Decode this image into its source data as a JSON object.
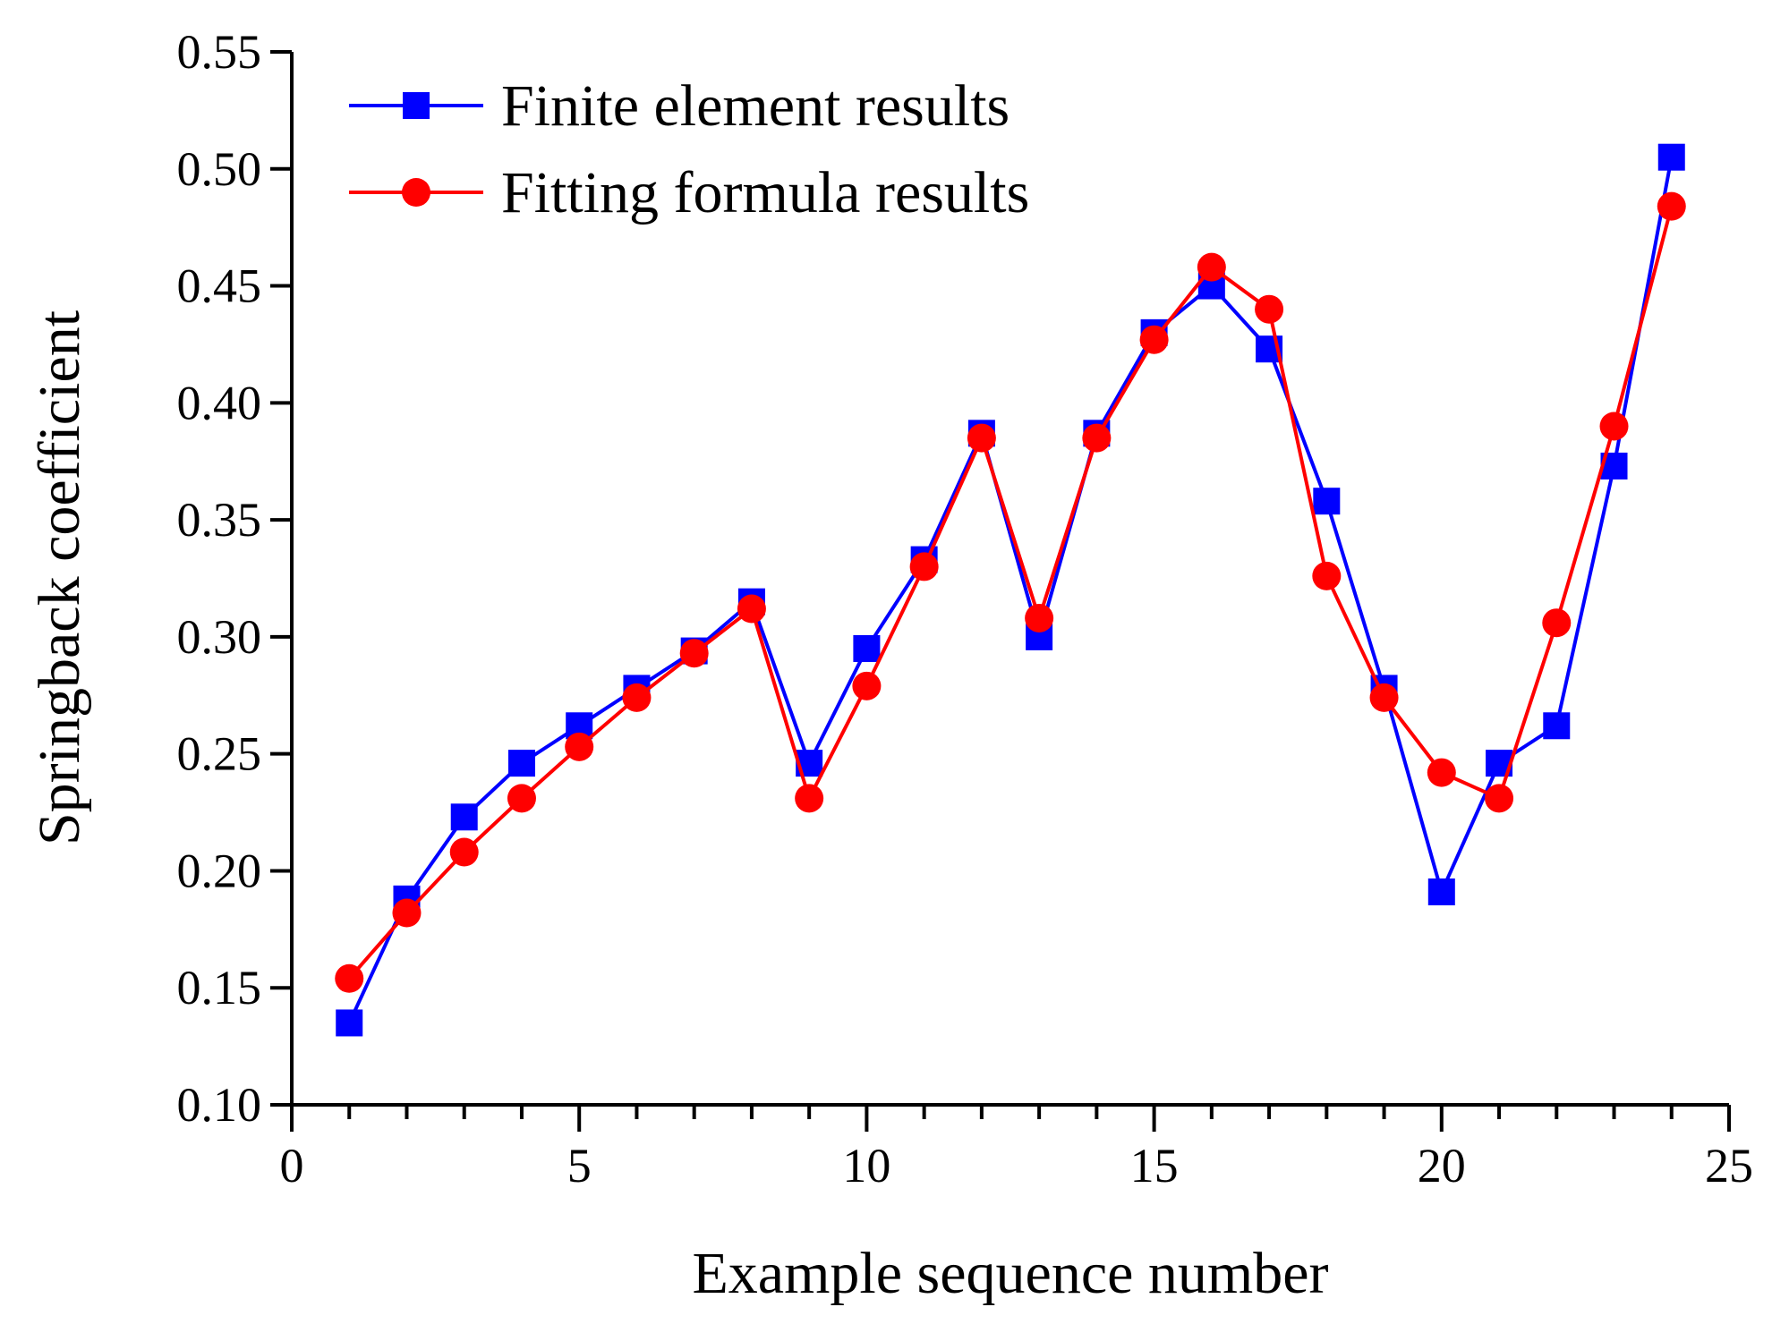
{
  "chart_data": {
    "type": "line",
    "xlabel": "Example sequence number",
    "ylabel": "Springback coefficient",
    "xlim": [
      0,
      25
    ],
    "ylim": [
      0.1,
      0.55
    ],
    "xticks": [
      0,
      5,
      10,
      15,
      20,
      25
    ],
    "yticks": [
      0.1,
      0.15,
      0.2,
      0.25,
      0.3,
      0.35,
      0.4,
      0.45,
      0.5,
      0.55
    ],
    "xtick_labels": [
      "0",
      "5",
      "10",
      "15",
      "20",
      "25"
    ],
    "ytick_labels": [
      "0.10",
      "0.15",
      "0.20",
      "0.25",
      "0.30",
      "0.35",
      "0.40",
      "0.45",
      "0.50",
      "0.55"
    ],
    "grid": false,
    "legend_position": "top-left",
    "x": [
      1,
      2,
      3,
      4,
      5,
      6,
      7,
      8,
      9,
      10,
      11,
      12,
      13,
      14,
      15,
      16,
      17,
      18,
      19,
      20,
      21,
      22,
      23,
      24
    ],
    "series": [
      {
        "name": "Finite element results",
        "color": "#0000ff",
        "marker": "square",
        "values": [
          0.135,
          0.188,
          0.223,
          0.246,
          0.262,
          0.278,
          0.294,
          0.315,
          0.246,
          0.295,
          0.333,
          0.387,
          0.3,
          0.387,
          0.43,
          0.45,
          0.423,
          0.358,
          0.278,
          0.191,
          0.246,
          0.262,
          0.373,
          0.505
        ]
      },
      {
        "name": "Fitting formula results",
        "color": "#ff0000",
        "marker": "circle",
        "values": [
          0.154,
          0.182,
          0.208,
          0.231,
          0.253,
          0.274,
          0.293,
          0.312,
          0.231,
          0.279,
          0.33,
          0.385,
          0.308,
          0.385,
          0.427,
          0.458,
          0.44,
          0.326,
          0.274,
          0.242,
          0.231,
          0.306,
          0.39,
          0.484
        ]
      }
    ]
  }
}
